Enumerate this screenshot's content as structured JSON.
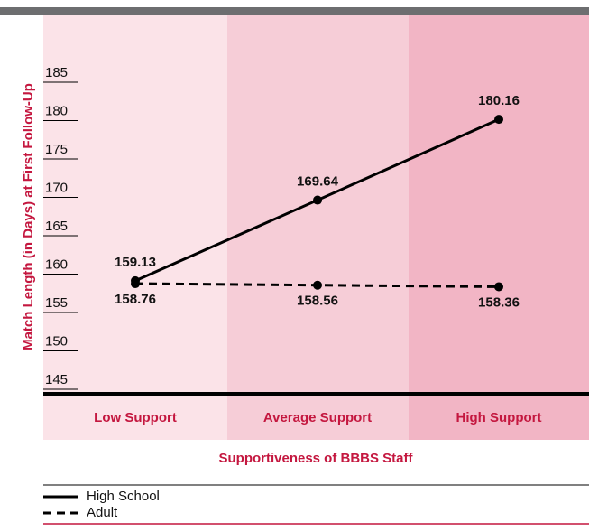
{
  "chart_data": {
    "type": "line",
    "categories": [
      "Low  Support",
      "Average Support",
      "High Support"
    ],
    "x_label": "Supportiveness of BBBS Staff",
    "y_label": "Match Length (in Days) at First Follow-Up",
    "ylim": [
      145,
      185
    ],
    "yticks": [
      145,
      150,
      155,
      160,
      165,
      170,
      175,
      180,
      185
    ],
    "grid": true,
    "series": [
      {
        "name": "High School",
        "color": "#000000",
        "style": "solid",
        "values": [
          159.13,
          169.64,
          180.16
        ]
      },
      {
        "name": "Adult",
        "color": "#000000",
        "style": "dashed",
        "values": [
          158.76,
          158.56,
          158.36
        ]
      }
    ]
  }
}
